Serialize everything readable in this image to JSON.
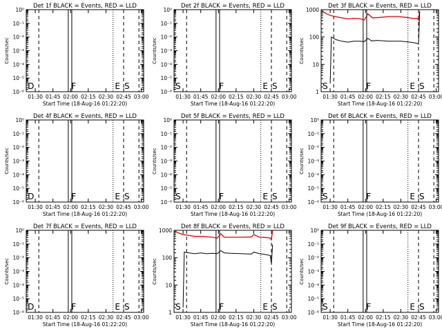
{
  "page": {
    "background": "#ffffff",
    "ink": "#000000",
    "lld_color": "#e00000"
  },
  "chart_data": [
    {
      "type": "line",
      "title": "Det 1f BLACK = Events, RED = LLD",
      "ylabel": "Counts/sec",
      "xlabel": "Start Time (18-Aug-16 01:22:20)",
      "yscale": "log",
      "ylim": [
        1e-06,
        1
      ],
      "ytick_labels": [
        "10⁰",
        "10⁻¹",
        "10⁻²",
        "10⁻³",
        "10⁻⁴",
        "10⁻⁵",
        "10⁻⁶"
      ],
      "x_ticks": [
        "01:30",
        "01:45",
        "02:00",
        "02:15",
        "02:30",
        "02:45",
        "03:00"
      ],
      "markers": [
        {
          "label": "D",
          "t": "01:23"
        },
        {
          "label": "F",
          "t": "02:00"
        },
        {
          "label": "E",
          "t": "02:37"
        },
        {
          "label": "S",
          "t": "02:45"
        }
      ],
      "series": []
    },
    {
      "type": "line",
      "title": "Det 2f BLACK = Events, RED = LLD",
      "ylabel": "Counts/sec",
      "xlabel": "Start Time (18-Aug-16 01:22:20)",
      "yscale": "log",
      "ylim": [
        1e-06,
        1
      ],
      "ytick_labels": [
        "10⁰",
        "10⁻¹",
        "10⁻²",
        "10⁻³",
        "10⁻⁴",
        "10⁻⁵",
        "10⁻⁶"
      ],
      "x_ticks": [
        "01:30",
        "01:45",
        "02:00",
        "02:15",
        "02:30",
        "02:45",
        "03:00"
      ],
      "markers": [
        {
          "label": "S",
          "t": "01:23"
        },
        {
          "label": "F",
          "t": "02:00"
        },
        {
          "label": "E",
          "t": "02:37"
        },
        {
          "label": "S",
          "t": "02:45"
        }
      ],
      "series": []
    },
    {
      "type": "line",
      "title": "Det 3f BLACK = Events, RED = LLD",
      "ylabel": "Counts/sec",
      "xlabel": "Start Time (18-Aug-16 01:22:20)",
      "yscale": "log",
      "ylim": [
        1,
        1000
      ],
      "ytick_labels": [
        "1000",
        "100",
        "10",
        "1"
      ],
      "x_ticks": [
        "01:30",
        "01:45",
        "02:00",
        "02:15",
        "02:30",
        "02:45",
        "03:00"
      ],
      "markers": [
        {
          "label": "S",
          "t": "01:23"
        },
        {
          "label": "F",
          "t": "02:00"
        },
        {
          "label": "E",
          "t": "02:37"
        },
        {
          "label": "S",
          "t": "02:45"
        }
      ],
      "series": [
        {
          "color": "#e00000",
          "x": [
            "01:23",
            "01:27",
            "01:31",
            "01:35",
            "01:40",
            "01:45",
            "01:50",
            "01:55",
            "01:59",
            "02:02",
            "02:06",
            "02:12",
            "02:20",
            "02:28",
            "02:35",
            "02:40",
            "02:44",
            "02:45",
            "02:46"
          ],
          "y": [
            900,
            700,
            600,
            550,
            500,
            460,
            480,
            470,
            420,
            700,
            500,
            520,
            560,
            560,
            520,
            480,
            480,
            420,
            900
          ]
        },
        {
          "color": "#000000",
          "x": [
            "01:30",
            "01:31",
            "01:35",
            "01:40",
            "01:45",
            "01:50",
            "01:55",
            "01:59",
            "02:02",
            "02:05",
            "02:10",
            "02:20",
            "02:30",
            "02:38",
            "02:43",
            "02:45",
            "02:46"
          ],
          "y": [
            2,
            100,
            80,
            70,
            65,
            70,
            70,
            68,
            90,
            72,
            75,
            70,
            70,
            65,
            60,
            55,
            800
          ]
        }
      ]
    },
    {
      "type": "line",
      "title": "Det 4f BLACK = Events, RED = LLD",
      "ylabel": "Counts/sec",
      "xlabel": "Start Time (18-Aug-16 01:22:20)",
      "yscale": "log",
      "ylim": [
        1e-06,
        1
      ],
      "ytick_labels": [
        "10⁰",
        "10⁻¹",
        "10⁻²",
        "10⁻³",
        "10⁻⁴",
        "10⁻⁵",
        "10⁻⁶"
      ],
      "x_ticks": [
        "01:30",
        "01:45",
        "02:00",
        "02:15",
        "02:30",
        "02:45",
        "03:00"
      ],
      "markers": [
        {
          "label": "D",
          "t": "01:23"
        },
        {
          "label": "F",
          "t": "02:00"
        },
        {
          "label": "E",
          "t": "02:37"
        },
        {
          "label": "S",
          "t": "02:45"
        }
      ],
      "series": []
    },
    {
      "type": "line",
      "title": "Det 5f BLACK = Events, RED = LLD",
      "ylabel": "Counts/sec",
      "xlabel": "Start Time (18-Aug-16 01:22:20)",
      "yscale": "log",
      "ylim": [
        1e-06,
        1
      ],
      "ytick_labels": [
        "10⁰",
        "10⁻¹",
        "10⁻²",
        "10⁻³",
        "10⁻⁴",
        "10⁻⁵",
        "10⁻⁶"
      ],
      "x_ticks": [
        "01:30",
        "01:45",
        "02:00",
        "02:15",
        "02:30",
        "02:45",
        "03:00"
      ],
      "markers": [
        {
          "label": "S",
          "t": "01:23"
        },
        {
          "label": "F",
          "t": "02:00"
        },
        {
          "label": "E",
          "t": "02:37"
        },
        {
          "label": "S",
          "t": "02:45"
        }
      ],
      "series": []
    },
    {
      "type": "line",
      "title": "Det 6f BLACK = Events, RED = LLD",
      "ylabel": "Counts/sec",
      "xlabel": "Start Time (18-Aug-16 01:22:20)",
      "yscale": "log",
      "ylim": [
        1e-06,
        1
      ],
      "ytick_labels": [
        "10⁰",
        "10⁻¹",
        "10⁻²",
        "10⁻³",
        "10⁻⁴",
        "10⁻⁵",
        "10⁻⁶"
      ],
      "x_ticks": [
        "01:30",
        "01:45",
        "02:00",
        "02:15",
        "02:30",
        "02:45",
        "03:00"
      ],
      "markers": [
        {
          "label": "S",
          "t": "01:23"
        },
        {
          "label": "F",
          "t": "02:00"
        },
        {
          "label": "E",
          "t": "02:37"
        },
        {
          "label": "S",
          "t": "02:45"
        }
      ],
      "series": []
    },
    {
      "type": "line",
      "title": "Det 7f BLACK = Events, RED = LLD",
      "ylabel": "Counts/sec",
      "xlabel": "Start Time (18-Aug-16 01:22:20)",
      "yscale": "log",
      "ylim": [
        1e-06,
        1
      ],
      "ytick_labels": [
        "10⁰",
        "10⁻¹",
        "10⁻²",
        "10⁻³",
        "10⁻⁴",
        "10⁻⁵",
        "10⁻⁶"
      ],
      "x_ticks": [
        "01:30",
        "01:45",
        "02:00",
        "02:15",
        "02:30",
        "02:45",
        "03:00"
      ],
      "markers": [
        {
          "label": "D",
          "t": "01:23"
        },
        {
          "label": "F",
          "t": "02:00"
        },
        {
          "label": "E",
          "t": "02:37"
        },
        {
          "label": "S",
          "t": "02:45"
        }
      ],
      "series": []
    },
    {
      "type": "line",
      "title": "Det 8f BLACK = Events, RED = LLD",
      "ylabel": "Counts/sec",
      "xlabel": "Start Time (18-Aug-16 01:22:20)",
      "yscale": "log",
      "ylim": [
        1,
        1000
      ],
      "ytick_labels": [
        "1000",
        "100",
        "10",
        "1"
      ],
      "x_ticks": [
        "01:30",
        "01:45",
        "02:00",
        "02:15",
        "02:30",
        "02:45",
        "03:00"
      ],
      "markers": [
        {
          "label": "S",
          "t": "01:23"
        },
        {
          "label": "F",
          "t": "02:00"
        },
        {
          "label": "E",
          "t": "02:37"
        },
        {
          "label": "S",
          "t": "02:45"
        }
      ],
      "series": [
        {
          "color": "#e00000",
          "x": [
            "01:23",
            "01:26",
            "01:30",
            "01:35",
            "01:40",
            "01:45",
            "01:50",
            "01:55",
            "01:59",
            "02:02",
            "02:05",
            "02:10",
            "02:20",
            "02:28",
            "02:30",
            "02:35",
            "02:40",
            "02:44",
            "02:45",
            "02:46"
          ],
          "y": [
            950,
            800,
            700,
            650,
            600,
            600,
            580,
            560,
            520,
            750,
            560,
            560,
            560,
            570,
            700,
            560,
            550,
            520,
            450,
            1000
          ]
        },
        {
          "color": "#000000",
          "x": [
            "01:30",
            "01:31",
            "01:35",
            "01:40",
            "01:45",
            "01:50",
            "01:55",
            "01:59",
            "02:02",
            "02:05",
            "02:10",
            "02:20",
            "02:28",
            "02:30",
            "02:35",
            "02:40",
            "02:44",
            "02:45",
            "02:46"
          ],
          "y": [
            1.5,
            160,
            150,
            140,
            150,
            140,
            145,
            140,
            180,
            150,
            145,
            140,
            135,
            160,
            140,
            130,
            120,
            60,
            300
          ]
        }
      ]
    },
    {
      "type": "line",
      "title": "Det 9f BLACK = Events, RED = LLD",
      "ylabel": "Counts/sec",
      "xlabel": "Start Time (18-Aug-16 01:22:20)",
      "yscale": "log",
      "ylim": [
        1e-06,
        1
      ],
      "ytick_labels": [
        "10⁰",
        "10⁻¹",
        "10⁻²",
        "10⁻³",
        "10⁻⁴",
        "10⁻⁵",
        "10⁻⁶"
      ],
      "x_ticks": [
        "01:30",
        "01:45",
        "02:00",
        "02:15",
        "02:30",
        "02:45",
        "03:00"
      ],
      "markers": [
        {
          "label": "S",
          "t": "01:23"
        },
        {
          "label": "F",
          "t": "02:00"
        },
        {
          "label": "E",
          "t": "02:37"
        },
        {
          "label": "S",
          "t": "02:45"
        }
      ],
      "series": []
    }
  ]
}
